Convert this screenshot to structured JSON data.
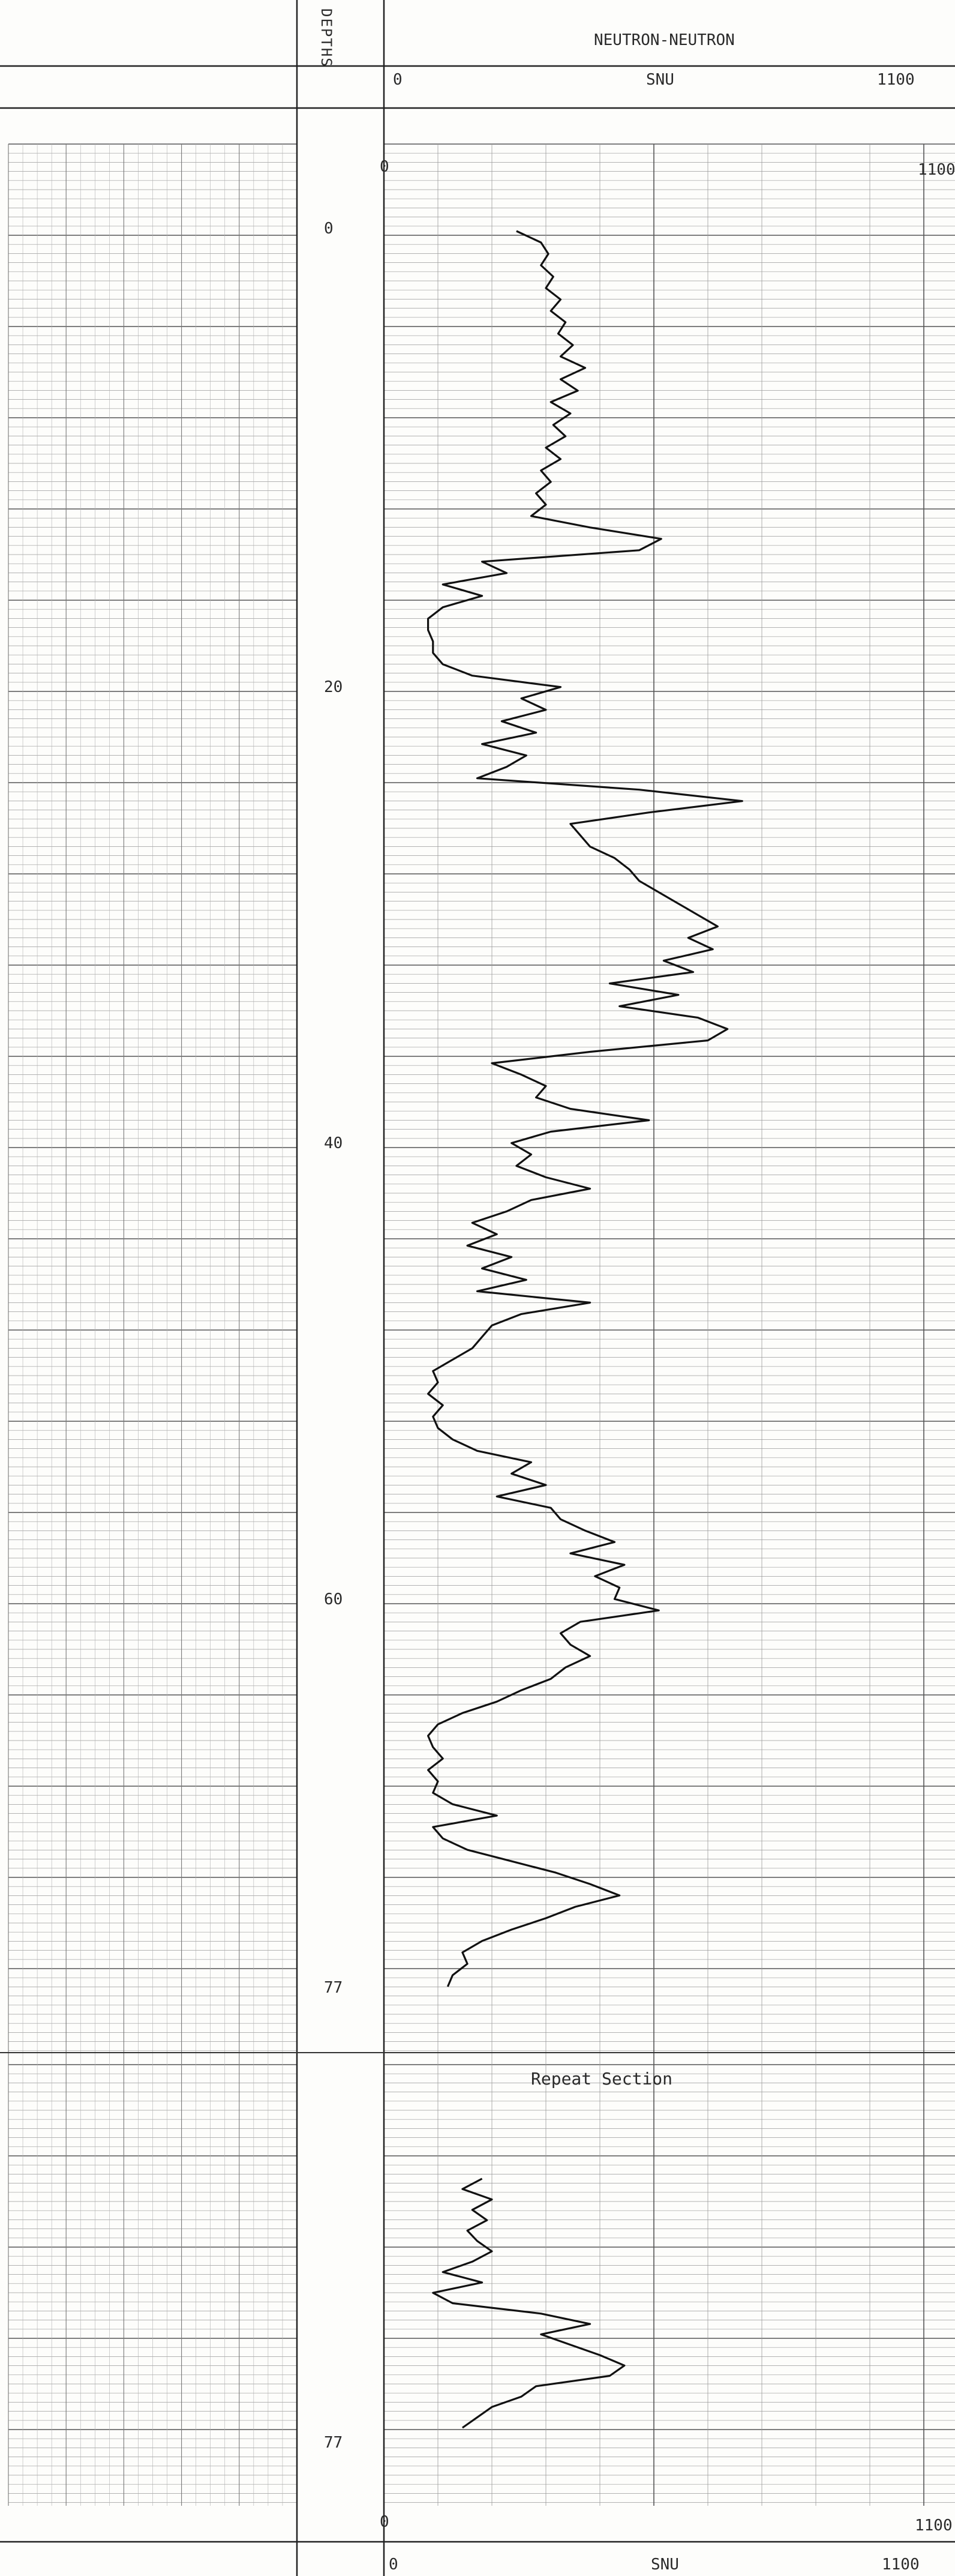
{
  "header": {
    "depth_track_title": "DEPTHS",
    "curve_title": "NEUTRON-NEUTRON"
  },
  "scale": {
    "left": "0",
    "unit": "SNU",
    "right": "1100"
  },
  "repeat_label": "Repeat Section",
  "depth_labels": [
    "0",
    "20",
    "40",
    "60",
    "77",
    "77"
  ],
  "chart_data": {
    "type": "line",
    "title": "NEUTRON-NEUTRON",
    "xlabel": "SNU",
    "ylabel": "DEPTHS",
    "xlim": [
      0,
      1100
    ],
    "main_section": {
      "ylim": [
        0,
        77
      ],
      "depth_ticks": [
        0,
        20,
        40,
        60,
        77
      ],
      "points": [
        [
          0,
          270
        ],
        [
          0.5,
          320
        ],
        [
          1,
          335
        ],
        [
          1.5,
          320
        ],
        [
          2,
          345
        ],
        [
          2.5,
          330
        ],
        [
          3,
          360
        ],
        [
          3.5,
          340
        ],
        [
          4,
          370
        ],
        [
          4.5,
          355
        ],
        [
          5,
          385
        ],
        [
          5.5,
          360
        ],
        [
          6,
          410
        ],
        [
          6.5,
          360
        ],
        [
          7,
          395
        ],
        [
          7.5,
          340
        ],
        [
          8,
          380
        ],
        [
          8.5,
          345
        ],
        [
          9,
          370
        ],
        [
          9.5,
          330
        ],
        [
          10,
          360
        ],
        [
          10.5,
          320
        ],
        [
          11,
          340
        ],
        [
          11.5,
          310
        ],
        [
          12,
          330
        ],
        [
          12.5,
          300
        ],
        [
          13,
          420
        ],
        [
          13.5,
          565
        ],
        [
          14,
          520
        ],
        [
          14.5,
          200
        ],
        [
          15,
          250
        ],
        [
          15.5,
          120
        ],
        [
          16,
          200
        ],
        [
          16.5,
          120
        ],
        [
          17,
          90
        ],
        [
          17.5,
          90
        ],
        [
          18,
          100
        ],
        [
          18.5,
          100
        ],
        [
          19,
          120
        ],
        [
          19.5,
          180
        ],
        [
          20,
          360
        ],
        [
          20.5,
          280
        ],
        [
          21,
          330
        ],
        [
          21.5,
          240
        ],
        [
          22,
          310
        ],
        [
          22.5,
          200
        ],
        [
          23,
          290
        ],
        [
          23.5,
          250
        ],
        [
          24,
          190
        ],
        [
          24.5,
          520
        ],
        [
          25,
          730
        ],
        [
          25.5,
          540
        ],
        [
          26,
          380
        ],
        [
          26.5,
          400
        ],
        [
          27,
          420
        ],
        [
          27.5,
          470
        ],
        [
          28,
          500
        ],
        [
          28.5,
          520
        ],
        [
          29,
          560
        ],
        [
          29.5,
          600
        ],
        [
          30,
          640
        ],
        [
          30.5,
          680
        ],
        [
          31,
          620
        ],
        [
          31.5,
          670
        ],
        [
          32,
          570
        ],
        [
          32.5,
          630
        ],
        [
          33,
          460
        ],
        [
          33.5,
          600
        ],
        [
          34,
          480
        ],
        [
          34.5,
          640
        ],
        [
          35,
          700
        ],
        [
          35.5,
          660
        ],
        [
          36,
          420
        ],
        [
          36.5,
          220
        ],
        [
          37,
          280
        ],
        [
          37.5,
          330
        ],
        [
          38,
          310
        ],
        [
          38.5,
          380
        ],
        [
          39,
          540
        ],
        [
          39.5,
          340
        ],
        [
          40,
          260
        ],
        [
          40.5,
          300
        ],
        [
          41,
          270
        ],
        [
          41.5,
          330
        ],
        [
          42,
          420
        ],
        [
          42.5,
          300
        ],
        [
          43,
          250
        ],
        [
          43.5,
          180
        ],
        [
          44,
          230
        ],
        [
          44.5,
          170
        ],
        [
          45,
          260
        ],
        [
          45.5,
          200
        ],
        [
          46,
          290
        ],
        [
          46.5,
          190
        ],
        [
          47,
          420
        ],
        [
          47.5,
          280
        ],
        [
          48,
          220
        ],
        [
          48.5,
          200
        ],
        [
          49,
          180
        ],
        [
          49.5,
          140
        ],
        [
          50,
          100
        ],
        [
          50.5,
          110
        ],
        [
          51,
          90
        ],
        [
          51.5,
          120
        ],
        [
          52,
          100
        ],
        [
          52.5,
          110
        ],
        [
          53,
          140
        ],
        [
          53.5,
          190
        ],
        [
          54,
          300
        ],
        [
          54.5,
          260
        ],
        [
          55,
          330
        ],
        [
          55.5,
          230
        ],
        [
          56,
          340
        ],
        [
          56.5,
          360
        ],
        [
          57,
          410
        ],
        [
          57.5,
          470
        ],
        [
          58,
          380
        ],
        [
          58.5,
          490
        ],
        [
          59,
          430
        ],
        [
          59.5,
          480
        ],
        [
          60,
          470
        ],
        [
          60.5,
          560
        ],
        [
          61,
          400
        ],
        [
          61.5,
          360
        ],
        [
          62,
          380
        ],
        [
          62.5,
          420
        ],
        [
          63,
          370
        ],
        [
          63.5,
          340
        ],
        [
          64,
          280
        ],
        [
          64.5,
          230
        ],
        [
          65,
          160
        ],
        [
          65.5,
          110
        ],
        [
          66,
          90
        ],
        [
          66.5,
          100
        ],
        [
          67,
          120
        ],
        [
          67.5,
          90
        ],
        [
          68,
          110
        ],
        [
          68.5,
          100
        ],
        [
          69,
          140
        ],
        [
          69.5,
          230
        ],
        [
          70,
          100
        ],
        [
          70.5,
          120
        ],
        [
          71,
          170
        ],
        [
          71.5,
          260
        ],
        [
          72,
          350
        ],
        [
          72.5,
          420
        ],
        [
          73,
          480
        ],
        [
          73.5,
          390
        ],
        [
          74,
          330
        ],
        [
          74.5,
          260
        ],
        [
          75,
          200
        ],
        [
          75.5,
          160
        ],
        [
          76,
          170
        ],
        [
          76.5,
          140
        ],
        [
          77,
          130
        ]
      ]
    },
    "repeat_section": {
      "label": "Repeat Section",
      "depth_ticks": [
        77
      ],
      "points": [
        [
          0,
          200
        ],
        [
          1,
          160
        ],
        [
          2,
          220
        ],
        [
          3,
          180
        ],
        [
          4,
          210
        ],
        [
          5,
          170
        ],
        [
          6,
          190
        ],
        [
          7,
          220
        ],
        [
          8,
          180
        ],
        [
          9,
          120
        ],
        [
          10,
          200
        ],
        [
          11,
          100
        ],
        [
          12,
          140
        ],
        [
          13,
          320
        ],
        [
          14,
          420
        ],
        [
          15,
          320
        ],
        [
          16,
          380
        ],
        [
          17,
          440
        ],
        [
          18,
          490
        ],
        [
          19,
          460
        ],
        [
          20,
          310
        ],
        [
          21,
          280
        ],
        [
          22,
          220
        ],
        [
          23,
          190
        ],
        [
          24,
          160
        ]
      ]
    },
    "grid": true,
    "legend": "none"
  }
}
